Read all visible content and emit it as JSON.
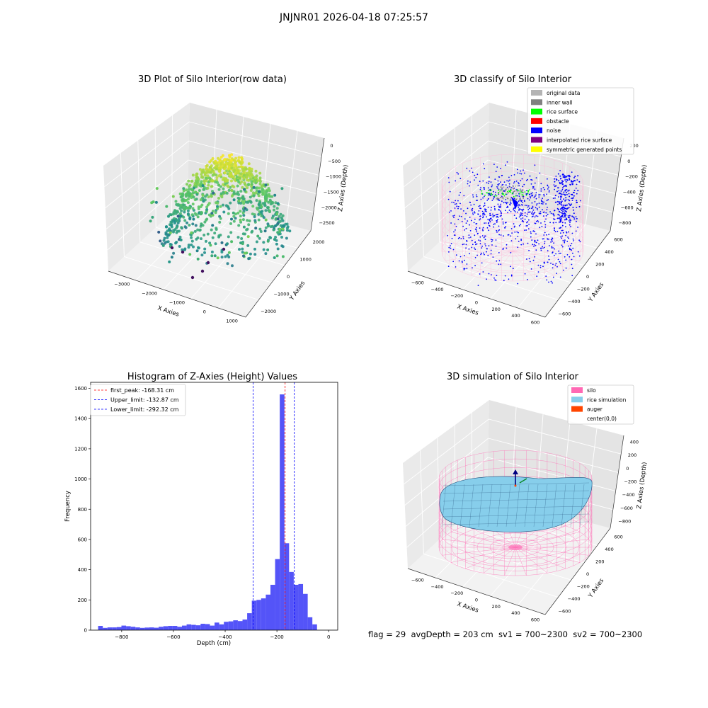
{
  "suptitle": "JNJNR01 2026-04-18 07:25:57",
  "footer": "flag = 29  avgDepth = 203 cm  sv1 = 700~2300  sv2 = 700~2300",
  "chart_data": [
    {
      "type": "scatter",
      "title": "3D Plot of Silo Interior(row data)",
      "xlabel": "X Axies",
      "ylabel": "Y Axies",
      "zlabel": "Z Axies (Depth)",
      "x_ticks": [
        "−3000",
        "−2000",
        "−1000",
        "0",
        "1000"
      ],
      "y_ticks": [
        "−2000",
        "−1000",
        "0",
        "1000",
        "2000"
      ],
      "z_ticks": [
        "0",
        "−500",
        "−1000",
        "−1500",
        "−2000",
        "−2500"
      ],
      "xlim": [
        -3000,
        1500
      ],
      "ylim": [
        -2500,
        2500
      ],
      "zlim": [
        -3000,
        0
      ],
      "colormap": "viridis"
    },
    {
      "type": "scatter",
      "title": "3D classify of Silo Interior",
      "xlabel": "X Axies",
      "ylabel": "Y Axies",
      "zlabel": "Z Axies (Depth)",
      "x_ticks": [
        "−600",
        "−400",
        "−200",
        "0",
        "200",
        "400",
        "600"
      ],
      "y_ticks": [
        "−600",
        "−400",
        "−200",
        "0",
        "200",
        "400",
        "600"
      ],
      "z_ticks": [
        "200",
        "0",
        "−200",
        "−400",
        "−600",
        "−800"
      ],
      "legend": [
        {
          "label": "original data",
          "color": "#b4b4b4"
        },
        {
          "label": "inner wall",
          "color": "#808080"
        },
        {
          "label": "rice surface",
          "color": "#00ff00"
        },
        {
          "label": "obstacle",
          "color": "#ff0000"
        },
        {
          "label": "noise",
          "color": "#0000ff"
        },
        {
          "label": "interpolated rice surface",
          "color": "#800080"
        },
        {
          "label": "symmetric generated points",
          "color": "#ffff00"
        }
      ],
      "legend_loc": "upper right"
    },
    {
      "type": "bar",
      "title": "Histogram of Z-Axies (Height) Values",
      "xlabel": "Depth (cm)",
      "ylabel": "Frequency",
      "xlim": [
        -920,
        35
      ],
      "ylim": [
        0,
        1640
      ],
      "x_ticks": [
        -800,
        -600,
        -400,
        -200,
        0
      ],
      "y_ticks": [
        0,
        200,
        400,
        600,
        800,
        1000,
        1200,
        1400,
        1600
      ],
      "bin_width": 18,
      "bin_start": -891,
      "values": [
        28,
        15,
        18,
        18,
        20,
        30,
        26,
        22,
        18,
        15,
        17,
        18,
        16,
        22,
        26,
        28,
        28,
        22,
        30,
        38,
        35,
        32,
        42,
        40,
        30,
        50,
        38,
        55,
        58,
        65,
        60,
        70,
        112,
        195,
        200,
        210,
        235,
        300,
        470,
        1560,
        575,
        385,
        300,
        305,
        240,
        85,
        38
      ],
      "bar_color": "#4b4bf8",
      "vlines": [
        {
          "label": "first_peak: -168.31 cm",
          "x": -168.31,
          "color": "#ff0000"
        },
        {
          "label": "Upper_limit: -132.87 cm",
          "x": -132.87,
          "color": "#0000ff"
        },
        {
          "label": "Lower_limit: -292.32 cm",
          "x": -292.32,
          "color": "#0000ff"
        }
      ],
      "legend_loc": "upper left"
    },
    {
      "type": "scatter",
      "title": "3D simulation of Silo Interior",
      "xlabel": "X Axies",
      "ylabel": "Y Axies",
      "zlabel": "Z Axies (Depth)",
      "x_ticks": [
        "−600",
        "−400",
        "−200",
        "0",
        "200",
        "400",
        "600"
      ],
      "y_ticks": [
        "−600",
        "−400",
        "−200",
        "0",
        "200",
        "400",
        "600"
      ],
      "z_ticks": [
        "400",
        "200",
        "0",
        "−200",
        "−400",
        "−600",
        "−800"
      ],
      "legend": [
        {
          "label": "silo",
          "color": "#ff69b4"
        },
        {
          "label": "rice simulation",
          "color": "#87ceeb"
        },
        {
          "label": "auger",
          "color": "#ff4500"
        },
        {
          "label": "center(0,0)",
          "color": ""
        }
      ],
      "legend_loc": "upper right"
    }
  ]
}
